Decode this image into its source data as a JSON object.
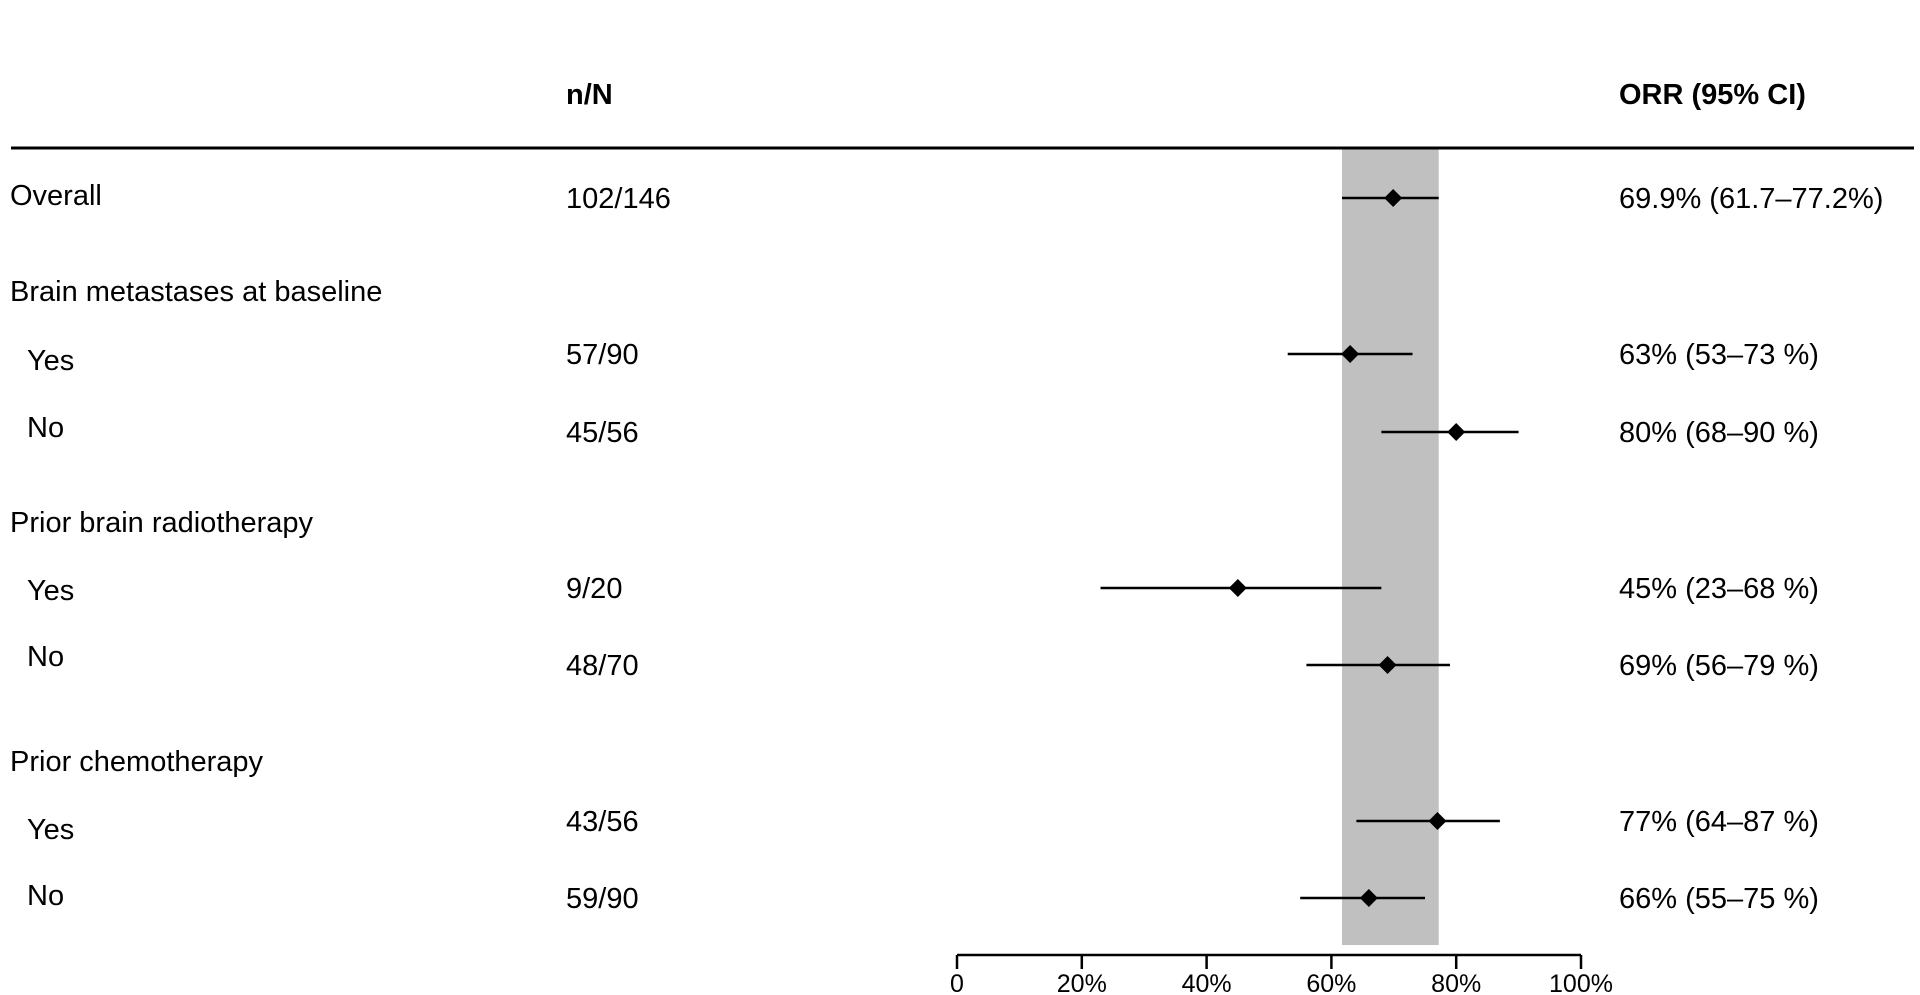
{
  "chart_data": {
    "type": "forest",
    "headers": {
      "n_over_N": "n/N",
      "estimate": "ORR (95% CI)"
    },
    "rows": [
      {
        "label": "Overall",
        "indent": false,
        "n_over_N": "102/146",
        "estimate_text": "69.9% (61.7–77.2%)",
        "estimate": 69.9,
        "ci_low": 61.7,
        "ci_high": 77.2
      },
      {
        "label": "Brain metastases at baseline",
        "indent": false,
        "group_header": true
      },
      {
        "label": "Yes",
        "indent": true,
        "n_over_N": "57/90",
        "estimate_text": "63% (53–73 %)",
        "estimate": 63,
        "ci_low": 53,
        "ci_high": 73
      },
      {
        "label": "No",
        "indent": true,
        "n_over_N": "45/56",
        "estimate_text": "80% (68–90 %)",
        "estimate": 80,
        "ci_low": 68,
        "ci_high": 90
      },
      {
        "label": "Prior brain radiotherapy",
        "indent": false,
        "group_header": true
      },
      {
        "label": "Yes",
        "indent": true,
        "n_over_N": "9/20",
        "estimate_text": "45% (23–68 %)",
        "estimate": 45,
        "ci_low": 23,
        "ci_high": 68
      },
      {
        "label": "No",
        "indent": true,
        "n_over_N": "48/70",
        "estimate_text": "69% (56–79 %)",
        "estimate": 69,
        "ci_low": 56,
        "ci_high": 79
      },
      {
        "label": "Prior chemotherapy",
        "indent": false,
        "group_header": true
      },
      {
        "label": "Yes",
        "indent": true,
        "n_over_N": "43/56",
        "estimate_text": "77% (64–87 %)",
        "estimate": 77,
        "ci_low": 64,
        "ci_high": 87
      },
      {
        "label": "No",
        "indent": true,
        "n_over_N": "59/90",
        "estimate_text": "66% (55–75 %)",
        "estimate": 66,
        "ci_low": 55,
        "ci_high": 75
      }
    ],
    "reference_band": {
      "from": 61.7,
      "to": 77.2,
      "color": "#c0c0c0"
    },
    "x_axis": {
      "range": [
        0,
        100
      ],
      "ticks": [
        0,
        20,
        40,
        60,
        80,
        100
      ],
      "tick_labels": [
        "0",
        "20%",
        "40%",
        "60%",
        "80%",
        "100%"
      ]
    },
    "marker": "diamond",
    "colors": {
      "marks": "#000000",
      "band": "#c0c0c0"
    }
  }
}
